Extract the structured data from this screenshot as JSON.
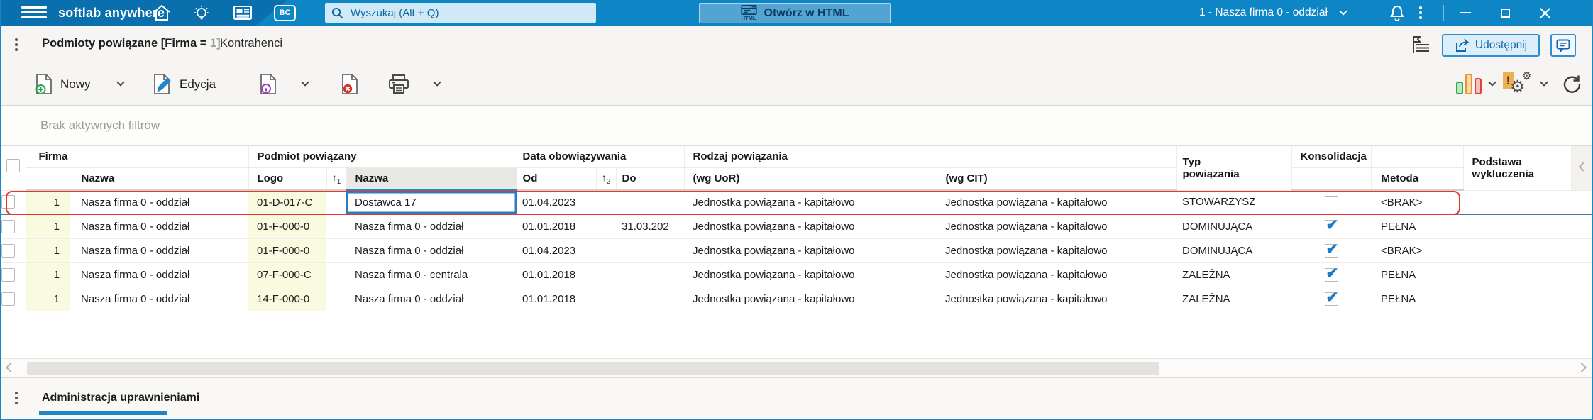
{
  "topbar": {
    "logo": "softlab anywhere",
    "bc_label": "BC",
    "search_placeholder": "Wyszukaj (Alt + Q)",
    "html_badge": "HTML",
    "open_html": "Otwórz w HTML",
    "company": "1 - Nasza firma 0 - oddział"
  },
  "tabbar": {
    "active_tab": "Podmioty powiązane [Firma = ",
    "active_tab_param": "1]",
    "tab2": "Kontrahenci",
    "share": "Udostępnij"
  },
  "toolbar": {
    "new": "Nowy",
    "edit": "Edycja"
  },
  "filterbar": {
    "message": "Brak aktywnych filtrów"
  },
  "icons": {
    "sort_arrow": "↑",
    "gear": "⚙",
    "alert": "!"
  },
  "table": {
    "group_headers": {
      "firma": "Firma",
      "podmiot": "Podmiot powiązany",
      "data_obow": "Data obowiązywania",
      "rodzaj": "Rodzaj powiązania",
      "typ": "Typ powiązania",
      "konsolidacja": "Konsolidacja",
      "podstawa": "Podstawa wykluczenia"
    },
    "columns": {
      "nazwa_firmy": "Nazwa",
      "logo": "Logo",
      "nazwa_podmiotu": "Nazwa",
      "od": "Od",
      "do": "Do",
      "wg_uor": "(wg UoR)",
      "wg_cit": "(wg CIT)",
      "metoda": "Metoda"
    },
    "sort1": "1",
    "sort2": "2",
    "rows": [
      {
        "firma": "1",
        "nazwa_firmy": "Nasza firma 0 - oddział",
        "logo": "01-D-017-C",
        "nazwa_podmiotu": "Dostawca 17",
        "od": "01.04.2023",
        "do": "",
        "wg_uor": "Jednostka powiązana - kapitałowo",
        "wg_cit": "Jednostka powiązana - kapitałowo",
        "typ": "STOWARZYSZ",
        "konsolidacja": false,
        "metoda": "<BRAK>",
        "podstawa": ""
      },
      {
        "firma": "1",
        "nazwa_firmy": "Nasza firma 0 - oddział",
        "logo": "01-F-000-0",
        "nazwa_podmiotu": "Nasza firma 0 - oddział",
        "od": "01.01.2018",
        "do": "31.03.202",
        "wg_uor": "Jednostka powiązana - kapitałowo",
        "wg_cit": "Jednostka powiązana - kapitałowo",
        "typ": "DOMINUJĄCA",
        "konsolidacja": true,
        "metoda": "PEŁNA",
        "podstawa": ""
      },
      {
        "firma": "1",
        "nazwa_firmy": "Nasza firma 0 - oddział",
        "logo": "01-F-000-0",
        "nazwa_podmiotu": "Nasza firma 0 - oddział",
        "od": "01.04.2023",
        "do": "",
        "wg_uor": "Jednostka powiązana - kapitałowo",
        "wg_cit": "Jednostka powiązana - kapitałowo",
        "typ": "DOMINUJĄCA",
        "konsolidacja": true,
        "metoda": "<BRAK>",
        "podstawa": ""
      },
      {
        "firma": "1",
        "nazwa_firmy": "Nasza firma 0 - oddział",
        "logo": "07-F-000-C",
        "nazwa_podmiotu": "Nasza firma 0 - centrala",
        "od": "01.01.2018",
        "do": "",
        "wg_uor": "Jednostka powiązana - kapitałowo",
        "wg_cit": "Jednostka powiązana - kapitałowo",
        "typ": "ZALEŻNA",
        "konsolidacja": true,
        "metoda": "PEŁNA",
        "podstawa": ""
      },
      {
        "firma": "1",
        "nazwa_firmy": "Nasza firma 0 - oddział",
        "logo": "14-F-000-0",
        "nazwa_podmiotu": "Nasza firma 0 - oddział",
        "od": "01.01.2018",
        "do": "",
        "wg_uor": "Jednostka powiązana - kapitałowo",
        "wg_cit": "Jednostka powiązana - kapitałowo",
        "typ": "ZALEŻNA",
        "konsolidacja": true,
        "metoda": "PEŁNA",
        "podstawa": ""
      }
    ]
  },
  "bottombar": {
    "tab": "Administracja uprawnieniami"
  },
  "colors": {
    "topbar_blue": "#0e85c5",
    "logo_blue": "#0a70ad",
    "accent_blue": "#1e87c8",
    "highlight_red": "#e6352b",
    "selected_cell_blue": "#2b7cc0",
    "row_yellow": "#fafae1",
    "check_blue": "#1a7ac5"
  }
}
